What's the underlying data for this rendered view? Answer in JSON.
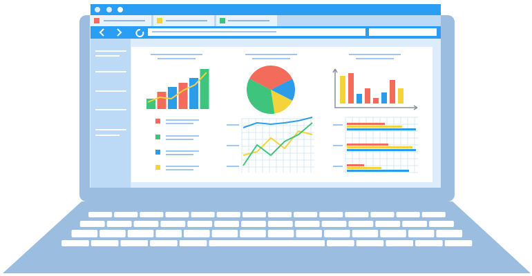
{
  "column_chart": {
    "values": [
      15,
      25,
      32,
      38,
      45,
      58
    ],
    "colors": [
      "#3ec47c",
      "#f26b5b",
      "#2c9ce8",
      "#f26b5b",
      "#2c9ce8",
      "#3ec47c"
    ],
    "trend": [
      5,
      12,
      10,
      22,
      30,
      48
    ],
    "trend_color": "#f5d33a"
  },
  "pie_chart": {
    "values": [
      35,
      15,
      15,
      35
    ],
    "colors": [
      "#f26b5b",
      "#2c9ce8",
      "#f5d33a",
      "#3ec47c"
    ]
  },
  "axis_column_chart": {
    "values": [
      40,
      44,
      14,
      22,
      8,
      16,
      34,
      22
    ],
    "colors": [
      "#f5d33a",
      "#f26b5b",
      "#2c9ce8",
      "#f26b5b",
      "#f26b5b",
      "#2c9ce8",
      "#f26b5b",
      "#f5d33a"
    ]
  },
  "line_chart": {
    "series": [
      {
        "color": "#2c9ce8",
        "values": [
          65,
          72,
          70,
          72,
          75,
          80
        ]
      },
      {
        "color": "#f5d33a",
        "values": [
          25,
          30,
          50,
          35,
          60,
          55
        ]
      },
      {
        "color": "#3ec47c",
        "values": [
          10,
          40,
          25,
          45,
          55,
          72
        ]
      }
    ]
  },
  "bar_groups": {
    "colors": [
      "#f26b5b",
      "#f5d33a",
      "#2c9ce8"
    ],
    "groups": [
      [
        55,
        80,
        100
      ],
      [
        60,
        95,
        100
      ],
      [
        25,
        50,
        90
      ]
    ]
  }
}
